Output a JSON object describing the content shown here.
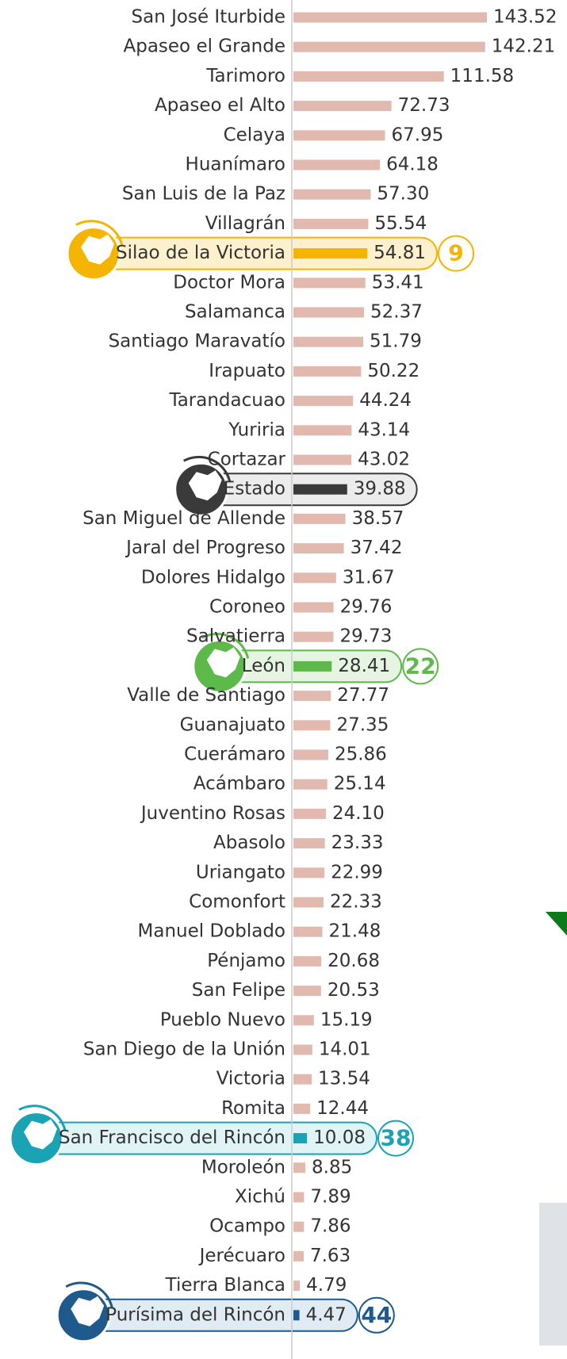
{
  "chart_data": {
    "type": "bar",
    "orientation": "horizontal",
    "color": "#e2b9ae",
    "categories": [
      "San José Iturbide",
      "Apaseo el Grande",
      "Tarimoro",
      "Apaseo el Alto",
      "Celaya",
      "Huanímaro",
      "San Luis de la Paz",
      "Villagrán",
      "Silao de la Victoria",
      "Doctor Mora",
      "Salamanca",
      "Santiago Maravatío",
      "Irapuato",
      "Tarandacuao",
      "Yuriria",
      "Cortazar",
      "Estado",
      "San Miguel de Allende",
      "Jaral del Progreso",
      "Dolores Hidalgo",
      "Coroneo",
      "Salvatierra",
      "León",
      "Valle de Santiago",
      "Guanajuato",
      "Cuerámaro",
      "Acámbaro",
      "Juventino Rosas",
      "Abasolo",
      "Uriangato",
      "Comonfort",
      "Manuel Doblado",
      "Pénjamo",
      "San Felipe",
      "Pueblo Nuevo",
      "San Diego de la Unión",
      "Victoria",
      "Romita",
      "San Francisco del Rincón",
      "Moroleón",
      "Xichú",
      "Ocampo",
      "Jerécuaro",
      "Tierra Blanca",
      "Purísima del Rincón"
    ],
    "values": [
      143.52,
      142.21,
      111.58,
      72.73,
      67.95,
      64.18,
      57.3,
      55.54,
      54.81,
      53.41,
      52.37,
      51.79,
      50.22,
      44.24,
      43.14,
      43.02,
      39.88,
      38.57,
      37.42,
      31.67,
      29.76,
      29.73,
      28.41,
      27.77,
      27.35,
      25.86,
      25.14,
      24.1,
      23.33,
      22.99,
      22.33,
      21.48,
      20.68,
      20.53,
      15.19,
      14.01,
      13.54,
      12.44,
      10.08,
      8.85,
      7.89,
      7.86,
      7.63,
      4.79,
      4.47
    ],
    "value_labels": [
      "143.52",
      "142.21",
      "111.58",
      "72.73",
      "67.95",
      "64.18",
      "57.30",
      "55.54",
      "54.81",
      "53.41",
      "52.37",
      "51.79",
      "50.22",
      "44.24",
      "43.14",
      "43.02",
      "39.88",
      "38.57",
      "37.42",
      "31.67",
      "29.76",
      "29.73",
      "28.41",
      "27.77",
      "27.35",
      "25.86",
      "25.14",
      "24.10",
      "23.33",
      "22.99",
      "22.33",
      "21.48",
      "20.68",
      "20.53",
      "15.19",
      "14.01",
      "13.54",
      "12.44",
      "10.08",
      "8.85",
      "7.89",
      "7.86",
      "7.63",
      "4.79",
      "4.47"
    ],
    "highlights": [
      {
        "name": "Silao de la Victoria",
        "rank": 9,
        "color": "#f5b400",
        "tint": "#fdf0cc"
      },
      {
        "name": "Estado",
        "color": "#3a3a3a",
        "tint": "#ececec"
      },
      {
        "name": "León",
        "rank": 22,
        "color": "#5db94a",
        "tint": "#e6f4e2"
      },
      {
        "name": "San Francisco del Rincón",
        "rank": 38,
        "color": "#1aa3b5",
        "tint": "#e0f4f6"
      },
      {
        "name": "Purísima del Rincón",
        "rank": 44,
        "color": "#1e5a8c",
        "tint": "#e1ebf4"
      }
    ]
  }
}
